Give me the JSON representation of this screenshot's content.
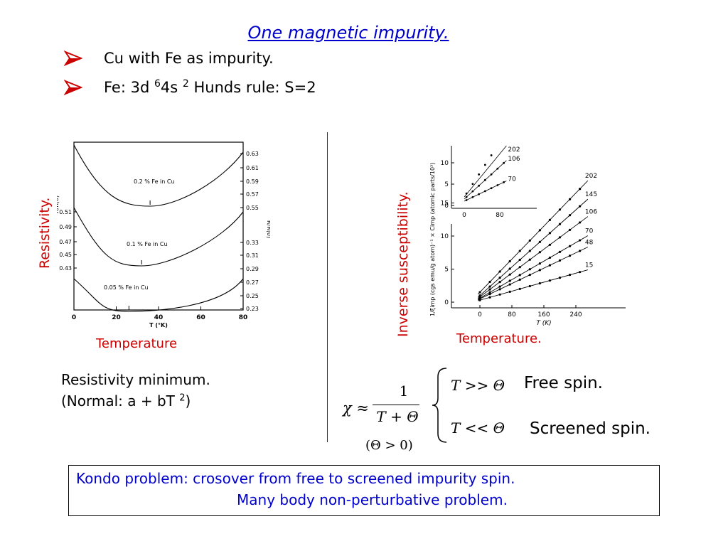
{
  "slide": {
    "title": "One magnetic impurity.",
    "bullets": [
      {
        "text": "Cu with  Fe as impurity."
      },
      {
        "pre": "Fe: 3d ",
        "sup1": "6",
        "mid": "4s ",
        "sup2": "2",
        "post": "  Hunds rule: S=2"
      }
    ],
    "left_ylabel": "Resistivity.",
    "left_xlabel": "Temperature",
    "right_ylabel": "Inverse  susceptibility.",
    "right_xlabel": "Temperature.",
    "resistivity_note_line1": "Resistivity minimum.",
    "resistivity_note_line2_pre": "(Normal: a + bT ",
    "resistivity_note_line2_sup": "2",
    "resistivity_note_line2_post": ")",
    "formula": {
      "chi": "χ ≈",
      "numerator": "1",
      "denominator": "T + Θ",
      "condition": "(Θ > 0)",
      "case1": "T >> Θ",
      "case1_label": "Free spin.",
      "case2": "T << Θ",
      "case2_label": "Screened spin."
    },
    "kondo_line1": "Kondo problem:  crosover from free to screened impurity spin.",
    "kondo_line2": "Many body non-perturbative problem."
  },
  "chart_data": [
    {
      "type": "line",
      "left_ylabel": "R/R(0)",
      "right_ylabel": "R/R(0)",
      "xlabel": "T (°K)",
      "xlim": [
        0,
        80
      ],
      "x_ticks": [
        "0",
        "20",
        "40",
        "60",
        "80"
      ],
      "left_ticks": [
        "0.51",
        "0.49",
        "0.47",
        "0.45",
        "0.43"
      ],
      "right_ticks": [
        "0.63",
        "0.61",
        "0.59",
        "0.57",
        "0.55",
        "0.33",
        "0.31",
        "0.29",
        "0.27",
        "0.25",
        "0.23"
      ],
      "series": [
        {
          "name": "0.2 % Fe in Cu",
          "min_x": 36
        },
        {
          "name": "0.1 % Fe in Cu",
          "min_x": 32
        },
        {
          "name": "0.05 % Fe in Cu",
          "min_x": 26
        }
      ]
    },
    {
      "type": "scatter",
      "ylabel": "1/ξimp (cgs emu/g atom)⁻¹ × Cimp (atomic parts/10³)",
      "xlabel": "T (K)",
      "x_ticks": [
        "0",
        "80",
        "160",
        "240"
      ],
      "y_ticks": [
        "0",
        "5",
        "10",
        "15"
      ],
      "inset_x_ticks": [
        "0",
        "80"
      ],
      "inset_y_ticks": [
        "0",
        "5",
        "10"
      ],
      "series": [
        {
          "name": "202",
          "slope": 0.0625,
          "intercept": 1.5
        },
        {
          "name": "145",
          "slope": 0.054,
          "intercept": 1.0
        },
        {
          "name": "106",
          "slope": 0.045,
          "intercept": 0.8
        },
        {
          "name": "70",
          "slope": 0.035,
          "intercept": 0.6
        },
        {
          "name": "48",
          "slope": 0.029,
          "intercept": 0.5
        },
        {
          "name": "15",
          "slope": 0.017,
          "intercept": 0.3
        }
      ],
      "inset_series": [
        {
          "name": "202",
          "slope": 0.16,
          "intercept": 2.0
        },
        {
          "name": "106",
          "slope": 0.095,
          "intercept": 1.5
        },
        {
          "name": "70",
          "slope": 0.05,
          "intercept": 1.0
        }
      ]
    }
  ]
}
